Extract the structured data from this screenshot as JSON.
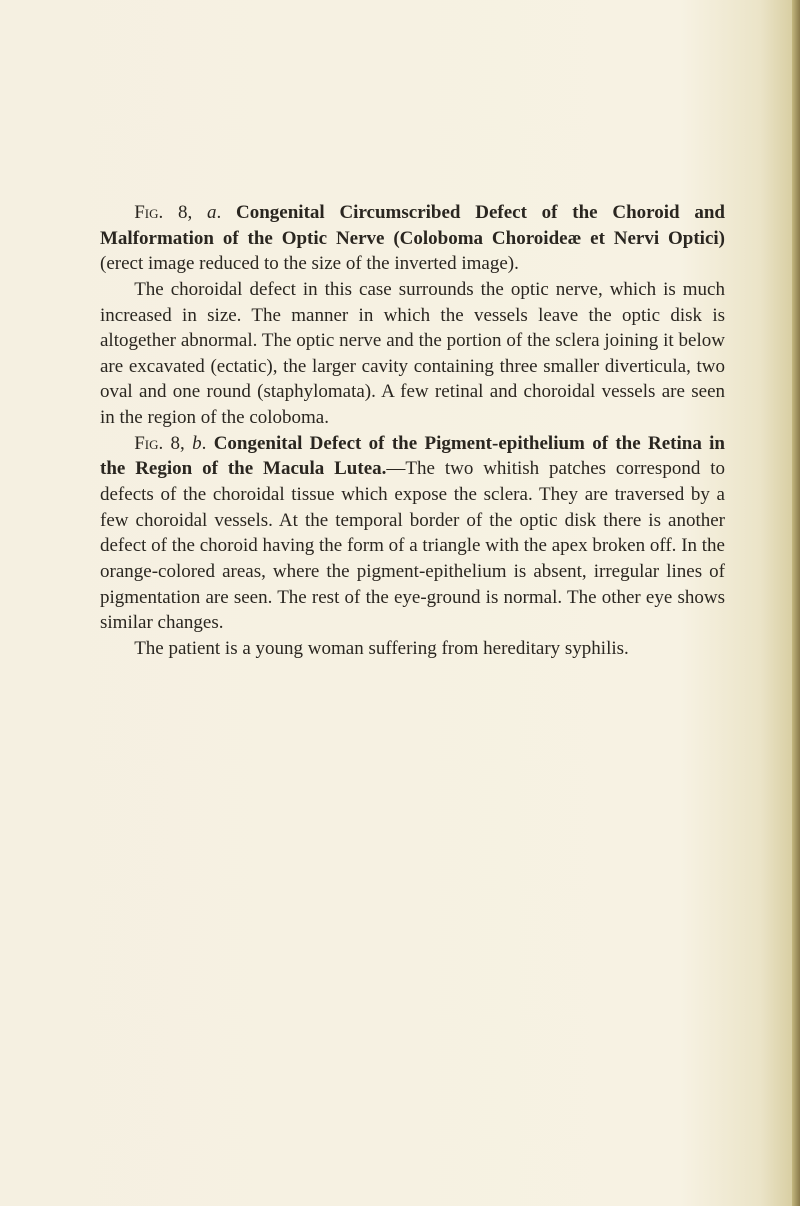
{
  "document": {
    "background_color": "#f5f0e1",
    "text_color": "#2a2620",
    "font_family": "Times New Roman",
    "font_size": 19,
    "line_height": 1.35,
    "paragraphs": [
      {
        "fig_label": "Fig. 8, ",
        "fig_italic": "a",
        "fig_punct": ". ",
        "bold_title": "Congenital Circumscribed Defect of the Choroid and Malformation of the Optic Nerve (Coloboma Choroideæ et Nervi Optici)",
        "body": " (erect image reduced to the size of the inverted image)."
      },
      {
        "body": "The choroidal defect in this case surrounds the optic nerve, which is much increased in size. The manner in which the vessels leave the optic disk is altogether abnormal. The optic nerve and the portion of the sclera joining it below are excavated (ectatic), the larger cavity containing three smaller diverticula, two oval and one round (staphylomata). A few retinal and choroidal vessels are seen in the region of the coloboma."
      },
      {
        "fig_label": "Fig. 8, ",
        "fig_italic": "b",
        "fig_punct": ". ",
        "bold_title": "Congenital Defect of the Pigment-epithelium of the Retina in the Region of the Macula Lutea.",
        "body": "—The two whitish patches correspond to defects of the choroidal tissue which expose the sclera. They are traversed by a few choroidal vessels. At the temporal border of the optic disk there is another defect of the choroid having the form of a triangle with the apex broken off. In the orange-colored areas, where the pigment-epithelium is absent, irregular lines of pigmentation are seen. The rest of the eye-ground is normal. The other eye shows similar changes."
      },
      {
        "body": "The patient is a young woman suffering from hereditary syphilis."
      }
    ]
  }
}
